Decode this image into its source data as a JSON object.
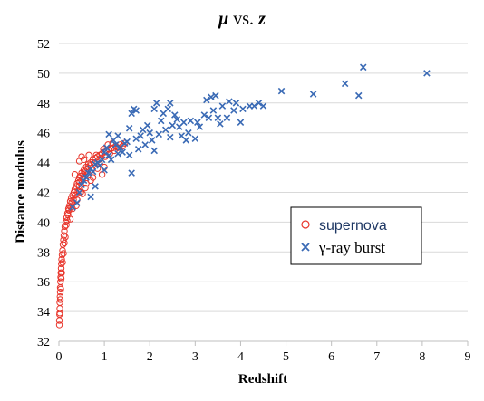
{
  "chart_data": {
    "type": "scatter",
    "title_symbol": "μ",
    "title_mid": " vs. ",
    "title_var": "z",
    "xlabel": "Redshift",
    "ylabel": "Distance modulus",
    "xlim": [
      0,
      9
    ],
    "ylim": [
      32,
      52
    ],
    "x_ticks": [
      "0",
      "1",
      "2",
      "3",
      "4",
      "5",
      "6",
      "7",
      "8",
      "9"
    ],
    "y_ticks": [
      "32",
      "34",
      "36",
      "38",
      "40",
      "42",
      "44",
      "46",
      "48",
      "50",
      "52"
    ],
    "grid": "horizontal",
    "legend_position": "center-right",
    "series": [
      {
        "name": "supernova",
        "marker": "circle",
        "color": "#e8352b",
        "points": [
          [
            0.01,
            33.1
          ],
          [
            0.01,
            33.4
          ],
          [
            0.015,
            33.8
          ],
          [
            0.02,
            34.2
          ],
          [
            0.02,
            34.6
          ],
          [
            0.025,
            35.0
          ],
          [
            0.03,
            35.3
          ],
          [
            0.03,
            35.6
          ],
          [
            0.035,
            36.0
          ],
          [
            0.04,
            36.3
          ],
          [
            0.045,
            36.6
          ],
          [
            0.05,
            36.9
          ],
          [
            0.055,
            37.2
          ],
          [
            0.06,
            37.5
          ],
          [
            0.07,
            37.8
          ],
          [
            0.08,
            38.1
          ],
          [
            0.09,
            38.5
          ],
          [
            0.1,
            38.8
          ],
          [
            0.11,
            39.1
          ],
          [
            0.12,
            39.4
          ],
          [
            0.13,
            39.7
          ],
          [
            0.15,
            40.0
          ],
          [
            0.17,
            40.3
          ],
          [
            0.19,
            40.6
          ],
          [
            0.21,
            40.9
          ],
          [
            0.23,
            41.1
          ],
          [
            0.25,
            41.4
          ],
          [
            0.27,
            41.6
          ],
          [
            0.3,
            41.8
          ],
          [
            0.33,
            42.0
          ],
          [
            0.35,
            42.2
          ],
          [
            0.38,
            42.4
          ],
          [
            0.4,
            42.6
          ],
          [
            0.43,
            42.8
          ],
          [
            0.45,
            43.0
          ],
          [
            0.48,
            43.1
          ],
          [
            0.5,
            43.3
          ],
          [
            0.55,
            43.5
          ],
          [
            0.6,
            43.7
          ],
          [
            0.65,
            43.9
          ],
          [
            0.7,
            44.0
          ],
          [
            0.75,
            44.2
          ],
          [
            0.8,
            44.3
          ],
          [
            0.85,
            44.4
          ],
          [
            0.9,
            44.5
          ],
          [
            0.95,
            44.6
          ],
          [
            1.0,
            44.7
          ],
          [
            1.05,
            44.8
          ],
          [
            1.1,
            44.9
          ],
          [
            1.15,
            44.95
          ],
          [
            1.2,
            45.0
          ],
          [
            1.25,
            45.1
          ],
          [
            1.3,
            45.0
          ],
          [
            1.35,
            45.2
          ],
          [
            1.4,
            45.1
          ],
          [
            1.45,
            45.3
          ],
          [
            0.02,
            33.9
          ],
          [
            0.03,
            34.8
          ],
          [
            0.04,
            35.5
          ],
          [
            0.05,
            36.2
          ],
          [
            0.06,
            36.6
          ],
          [
            0.08,
            37.3
          ],
          [
            0.1,
            37.9
          ],
          [
            0.12,
            38.6
          ],
          [
            0.14,
            39.0
          ],
          [
            0.16,
            39.8
          ],
          [
            0.18,
            40.1
          ],
          [
            0.2,
            40.5
          ],
          [
            0.22,
            40.8
          ],
          [
            0.26,
            41.0
          ],
          [
            0.28,
            41.3
          ],
          [
            0.32,
            41.5
          ],
          [
            0.36,
            41.8
          ],
          [
            0.42,
            42.1
          ],
          [
            0.44,
            42.4
          ],
          [
            0.46,
            42.7
          ],
          [
            0.52,
            42.9
          ],
          [
            0.54,
            43.2
          ],
          [
            0.58,
            43.4
          ],
          [
            0.62,
            43.6
          ],
          [
            0.64,
            43.2
          ],
          [
            0.68,
            43.8
          ],
          [
            0.72,
            43.5
          ],
          [
            0.78,
            44.0
          ],
          [
            0.82,
            44.5
          ],
          [
            0.88,
            44.2
          ],
          [
            0.92,
            44.3
          ],
          [
            0.98,
            44.9
          ],
          [
            1.02,
            44.4
          ],
          [
            1.08,
            45.2
          ],
          [
            1.12,
            44.6
          ],
          [
            1.18,
            45.3
          ],
          [
            1.22,
            44.8
          ],
          [
            0.35,
            43.2
          ],
          [
            0.4,
            41.5
          ],
          [
            0.45,
            44.1
          ],
          [
            0.5,
            44.4
          ],
          [
            0.55,
            44.2
          ],
          [
            0.6,
            42.6
          ],
          [
            0.7,
            42.8
          ],
          [
            0.75,
            43.0
          ],
          [
            0.85,
            43.6
          ],
          [
            0.95,
            43.2
          ],
          [
            0.3,
            40.9
          ],
          [
            0.48,
            42.0
          ],
          [
            0.58,
            42.3
          ],
          [
            0.66,
            44.5
          ],
          [
            0.9,
            43.9
          ],
          [
            1.0,
            43.7
          ],
          [
            0.25,
            40.2
          ],
          [
            0.38,
            41.1
          ],
          [
            0.52,
            41.9
          ]
        ]
      },
      {
        "name": "γ-ray burst",
        "marker": "x",
        "color": "#3a6ab5",
        "points": [
          [
            0.3,
            41.0
          ],
          [
            0.4,
            41.3
          ],
          [
            0.45,
            42.0
          ],
          [
            0.5,
            42.5
          ],
          [
            0.55,
            42.8
          ],
          [
            0.6,
            43.0
          ],
          [
            0.65,
            43.3
          ],
          [
            0.7,
            41.7
          ],
          [
            0.7,
            43.6
          ],
          [
            0.75,
            43.4
          ],
          [
            0.8,
            43.9
          ],
          [
            0.8,
            42.4
          ],
          [
            0.85,
            44.0
          ],
          [
            0.9,
            43.8
          ],
          [
            0.95,
            44.2
          ],
          [
            1.0,
            43.5
          ],
          [
            1.0,
            44.7
          ],
          [
            1.05,
            45.0
          ],
          [
            1.1,
            44.5
          ],
          [
            1.1,
            45.9
          ],
          [
            1.15,
            44.2
          ],
          [
            1.2,
            45.5
          ],
          [
            1.25,
            45.2
          ],
          [
            1.3,
            44.6
          ],
          [
            1.3,
            45.8
          ],
          [
            1.35,
            45.0
          ],
          [
            1.4,
            44.7
          ],
          [
            1.45,
            45.3
          ],
          [
            1.5,
            45.4
          ],
          [
            1.55,
            44.5
          ],
          [
            1.55,
            46.3
          ],
          [
            1.6,
            43.3
          ],
          [
            1.6,
            47.3
          ],
          [
            1.65,
            47.6
          ],
          [
            1.7,
            45.6
          ],
          [
            1.7,
            47.5
          ],
          [
            1.75,
            44.9
          ],
          [
            1.8,
            45.8
          ],
          [
            1.85,
            46.2
          ],
          [
            1.9,
            45.2
          ],
          [
            1.95,
            46.5
          ],
          [
            2.0,
            46.0
          ],
          [
            2.05,
            45.5
          ],
          [
            2.1,
            44.8
          ],
          [
            2.1,
            47.6
          ],
          [
            2.15,
            48.0
          ],
          [
            2.2,
            45.9
          ],
          [
            2.25,
            46.8
          ],
          [
            2.3,
            47.3
          ],
          [
            2.35,
            46.2
          ],
          [
            2.4,
            47.6
          ],
          [
            2.45,
            48.0
          ],
          [
            2.45,
            45.7
          ],
          [
            2.5,
            46.5
          ],
          [
            2.55,
            47.2
          ],
          [
            2.6,
            46.9
          ],
          [
            2.65,
            46.4
          ],
          [
            2.7,
            45.8
          ],
          [
            2.75,
            46.7
          ],
          [
            2.8,
            45.5
          ],
          [
            2.85,
            46.0
          ],
          [
            2.9,
            46.8
          ],
          [
            3.0,
            45.6
          ],
          [
            3.05,
            46.7
          ],
          [
            3.1,
            46.4
          ],
          [
            3.2,
            47.2
          ],
          [
            3.25,
            48.2
          ],
          [
            3.3,
            47.0
          ],
          [
            3.35,
            48.4
          ],
          [
            3.4,
            47.5
          ],
          [
            3.45,
            48.5
          ],
          [
            3.5,
            47.0
          ],
          [
            3.55,
            46.6
          ],
          [
            3.6,
            47.8
          ],
          [
            3.7,
            47.0
          ],
          [
            3.75,
            48.1
          ],
          [
            3.85,
            47.5
          ],
          [
            3.9,
            48.0
          ],
          [
            4.0,
            46.7
          ],
          [
            4.05,
            47.6
          ],
          [
            4.2,
            47.8
          ],
          [
            4.3,
            47.8
          ],
          [
            4.4,
            48.0
          ],
          [
            4.5,
            47.8
          ],
          [
            4.9,
            48.8
          ],
          [
            5.6,
            48.6
          ],
          [
            6.3,
            49.3
          ],
          [
            6.6,
            48.5
          ],
          [
            6.7,
            50.4
          ],
          [
            8.1,
            50.0
          ]
        ]
      }
    ]
  }
}
